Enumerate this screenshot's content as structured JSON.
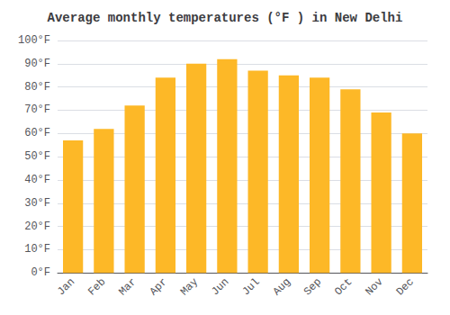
{
  "chart_data": {
    "type": "bar",
    "title": "Average monthly temperatures (°F ) in New Delhi",
    "categories": [
      "Jan",
      "Feb",
      "Mar",
      "Apr",
      "May",
      "Jun",
      "Jul",
      "Aug",
      "Sep",
      "Oct",
      "Nov",
      "Dec"
    ],
    "values": [
      57,
      62,
      72,
      84,
      90,
      92,
      87,
      85,
      84,
      79,
      69,
      60
    ],
    "color": "#FDB827",
    "ylim": [
      0,
      100
    ],
    "yticks": [
      {
        "value": 0,
        "label": "0°F"
      },
      {
        "value": 10,
        "label": "10°F"
      },
      {
        "value": 20,
        "label": "20°F"
      },
      {
        "value": 30,
        "label": "30°F"
      },
      {
        "value": 40,
        "label": "40°F"
      },
      {
        "value": 50,
        "label": "50°F"
      },
      {
        "value": 60,
        "label": "60°F"
      },
      {
        "value": 70,
        "label": "70°F"
      },
      {
        "value": 80,
        "label": "80°F"
      },
      {
        "value": 90,
        "label": "90°F"
      },
      {
        "value": 100,
        "label": "100°F"
      }
    ],
    "grid": true
  }
}
